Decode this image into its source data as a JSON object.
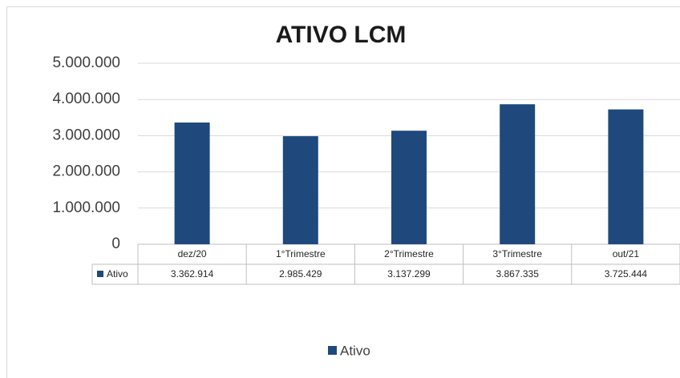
{
  "chart_data": {
    "type": "bar",
    "title": "ATIVO LCM",
    "categories": [
      "dez/20",
      "1°Trimestre",
      "2°Trimestre",
      "3°Trimestre",
      "out/21"
    ],
    "series": [
      {
        "name": "Ativo",
        "color": "#1f497d",
        "values": [
          3362914,
          2985429,
          3137299,
          3867335,
          3725444
        ],
        "value_labels": [
          "3.362.914",
          "2.985.429",
          "3.137.299",
          "3.867.335",
          "3.725.444"
        ]
      }
    ],
    "ylim": [
      0,
      5000000
    ],
    "yticks": [
      0,
      {
        "value": 1000000,
        "label": "1.000.000"
      },
      {
        "value": 2000000,
        "label": "2.000.000"
      },
      {
        "value": 3000000,
        "label": "3.000.000"
      },
      {
        "value": 4000000,
        "label": "4.000.000"
      },
      {
        "value": 5000000,
        "label": "5.000.000"
      }
    ],
    "grid": true,
    "legend": "bottom"
  }
}
